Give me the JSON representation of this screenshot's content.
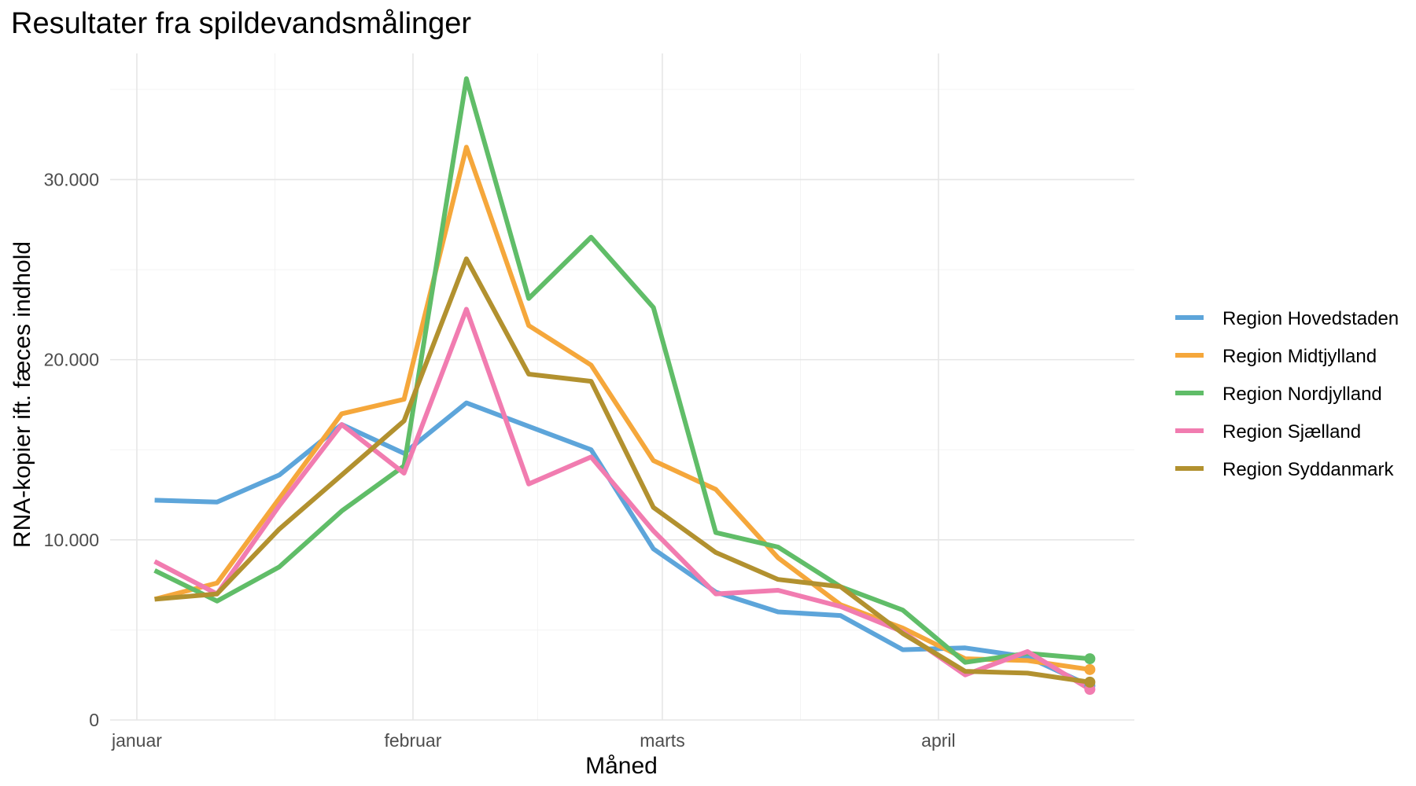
{
  "chart_data": {
    "type": "line",
    "title": "Resultater fra spildevandsmålinger",
    "xlabel": "Måned",
    "ylabel": "RNA-kopier ift. fæces indhold",
    "x_ticks": [
      {
        "date": "2022-01-01",
        "label": "januar"
      },
      {
        "date": "2022-02-01",
        "label": "februar"
      },
      {
        "date": "2022-03-01",
        "label": "marts"
      },
      {
        "date": "2022-04-01",
        "label": "april"
      }
    ],
    "y_ticks": [
      {
        "value": 0,
        "label": "0"
      },
      {
        "value": 10000,
        "label": "10.000"
      },
      {
        "value": 20000,
        "label": "20.000"
      },
      {
        "value": 30000,
        "label": "30.000"
      }
    ],
    "xlim": [
      "2021-12-29",
      "2022-04-23"
    ],
    "ylim": [
      0,
      37000
    ],
    "grid": true,
    "legend_position": "right",
    "end_markers": true,
    "x": [
      "2022-01-03",
      "2022-01-10",
      "2022-01-17",
      "2022-01-24",
      "2022-01-31",
      "2022-02-07",
      "2022-02-14",
      "2022-02-21",
      "2022-02-28",
      "2022-03-07",
      "2022-03-14",
      "2022-03-21",
      "2022-03-28",
      "2022-04-04",
      "2022-04-11",
      "2022-04-18"
    ],
    "series": [
      {
        "name": "Region Hovedstaden",
        "color": "#5DA5DA",
        "values": [
          12200,
          12100,
          13600,
          16400,
          14800,
          17600,
          16300,
          15000,
          9500,
          7100,
          6000,
          5800,
          3900,
          4000,
          3500,
          1900
        ]
      },
      {
        "name": "Region Midtjylland",
        "color": "#F5A73B",
        "values": [
          6700,
          7600,
          12300,
          17000,
          17800,
          31800,
          21900,
          19700,
          14400,
          12800,
          9000,
          6400,
          5100,
          3400,
          3300,
          2800
        ]
      },
      {
        "name": "Region Nordjylland",
        "color": "#60BD68",
        "values": [
          8300,
          6600,
          8500,
          11600,
          14100,
          35600,
          23400,
          26800,
          22900,
          10400,
          9600,
          7400,
          6100,
          3200,
          3700,
          3400
        ]
      },
      {
        "name": "Region Sjælland",
        "color": "#F17CB0",
        "values": [
          8800,
          7000,
          11900,
          16400,
          13700,
          22800,
          13100,
          14600,
          10500,
          7000,
          7200,
          6300,
          4900,
          2500,
          3800,
          1700
        ]
      },
      {
        "name": "Region Syddanmark",
        "color": "#B2912F",
        "values": [
          6700,
          7000,
          10600,
          13600,
          16600,
          25600,
          19200,
          18800,
          11800,
          9300,
          7800,
          7400,
          4800,
          2700,
          2600,
          2100
        ]
      }
    ]
  }
}
